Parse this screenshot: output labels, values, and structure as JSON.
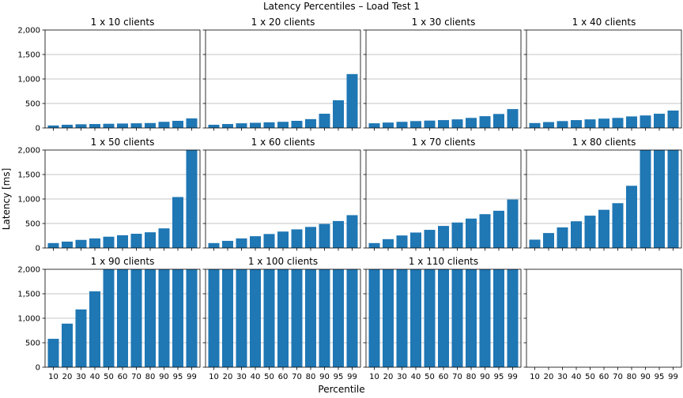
{
  "figure": {
    "title": "Latency Percentiles – Load Test 1",
    "xlabel": "Percentile",
    "ylabel": "Latency [ms]",
    "bar_color": "#1f77b4",
    "grid_color": "#b0b0b0"
  },
  "chart_data": {
    "type": "bar",
    "layout": "3x4 grid of small-multiple bar charts",
    "categories": [
      "10",
      "20",
      "30",
      "40",
      "50",
      "60",
      "70",
      "80",
      "90",
      "95",
      "99"
    ],
    "ylim": [
      0,
      2000
    ],
    "yticks": [
      0,
      500,
      1000,
      1500,
      2000
    ],
    "ytick_labels": [
      "0",
      "500",
      "1,000",
      "1,500",
      "2,000"
    ],
    "grid": "y-axis horizontal lines",
    "panels": [
      {
        "title": "1 x 10 clients",
        "values": [
          50,
          65,
          75,
          80,
          85,
          90,
          95,
          100,
          125,
          145,
          195
        ]
      },
      {
        "title": "1 x 20 clients",
        "values": [
          65,
          80,
          95,
          105,
          115,
          125,
          145,
          180,
          290,
          565,
          1100
        ]
      },
      {
        "title": "1 x 30 clients",
        "values": [
          95,
          110,
          125,
          140,
          150,
          160,
          175,
          205,
          240,
          285,
          385
        ]
      },
      {
        "title": "1 x 40 clients",
        "values": [
          100,
          120,
          140,
          160,
          175,
          190,
          205,
          235,
          255,
          290,
          355
        ]
      },
      {
        "title": "1 x 50 clients",
        "values": [
          100,
          130,
          165,
          195,
          230,
          260,
          290,
          320,
          400,
          1040,
          2000
        ]
      },
      {
        "title": "1 x 60 clients",
        "values": [
          100,
          145,
          195,
          240,
          285,
          335,
          380,
          430,
          490,
          550,
          670
        ]
      },
      {
        "title": "1 x 70 clients",
        "values": [
          100,
          180,
          255,
          315,
          370,
          450,
          520,
          600,
          690,
          760,
          990
        ]
      },
      {
        "title": "1 x 80 clients",
        "values": [
          170,
          305,
          420,
          545,
          660,
          780,
          915,
          1270,
          2000,
          2000,
          2000
        ]
      },
      {
        "title": "1 x 90 clients",
        "values": [
          580,
          890,
          1180,
          1550,
          2000,
          2000,
          2000,
          2000,
          2000,
          2000,
          2000
        ]
      },
      {
        "title": "1 x 100 clients",
        "values": [
          2000,
          2000,
          2000,
          2000,
          2000,
          2000,
          2000,
          2000,
          2000,
          2000,
          2000
        ]
      },
      {
        "title": "1 x 110 clients",
        "values": [
          2000,
          2000,
          2000,
          2000,
          2000,
          2000,
          2000,
          2000,
          2000,
          2000,
          2000
        ]
      },
      {
        "title": "",
        "values": []
      }
    ]
  }
}
